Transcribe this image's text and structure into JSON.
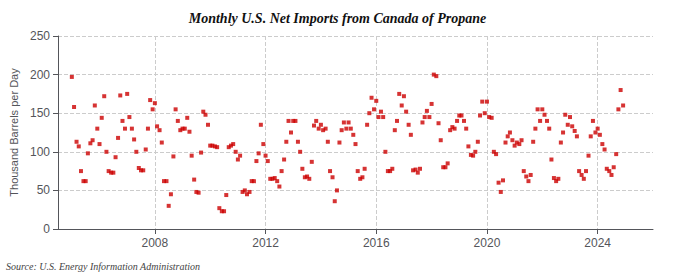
{
  "chart_data": {
    "type": "scatter",
    "title": "Monthly U.S. Net Imports from Canada of Propane",
    "ylabel": "Thousand Barrels per Day",
    "annotation": "Source: U.S. Energy Information Administration",
    "color": "#cc0000",
    "marker": "square",
    "grid": true,
    "xlim": [
      2004.5,
      2026.0
    ],
    "xticks": [
      2008,
      2012,
      2016,
      2020,
      2024
    ],
    "ylim": [
      0,
      250
    ],
    "yticks": [
      0,
      50,
      100,
      150,
      200,
      250
    ],
    "x": [
      2005.0,
      2005.08,
      2005.17,
      2005.25,
      2005.33,
      2005.42,
      2005.5,
      2005.58,
      2005.67,
      2005.75,
      2005.83,
      2005.92,
      2006.0,
      2006.08,
      2006.17,
      2006.25,
      2006.33,
      2006.42,
      2006.5,
      2006.58,
      2006.67,
      2006.75,
      2006.83,
      2006.92,
      2007.0,
      2007.08,
      2007.17,
      2007.25,
      2007.33,
      2007.42,
      2007.5,
      2007.58,
      2007.67,
      2007.75,
      2007.83,
      2007.92,
      2008.0,
      2008.08,
      2008.17,
      2008.25,
      2008.33,
      2008.42,
      2008.5,
      2008.58,
      2008.67,
      2008.75,
      2008.83,
      2008.92,
      2009.0,
      2009.08,
      2009.17,
      2009.25,
      2009.33,
      2009.42,
      2009.5,
      2009.58,
      2009.67,
      2009.75,
      2009.83,
      2009.92,
      2010.0,
      2010.08,
      2010.17,
      2010.25,
      2010.33,
      2010.42,
      2010.5,
      2010.58,
      2010.67,
      2010.75,
      2010.83,
      2010.92,
      2011.0,
      2011.08,
      2011.17,
      2011.25,
      2011.33,
      2011.42,
      2011.5,
      2011.58,
      2011.67,
      2011.75,
      2011.83,
      2011.92,
      2012.0,
      2012.08,
      2012.17,
      2012.25,
      2012.33,
      2012.42,
      2012.5,
      2012.58,
      2012.67,
      2012.75,
      2012.83,
      2012.92,
      2013.0,
      2013.08,
      2013.17,
      2013.25,
      2013.33,
      2013.42,
      2013.5,
      2013.58,
      2013.67,
      2013.75,
      2013.83,
      2013.92,
      2014.0,
      2014.08,
      2014.17,
      2014.25,
      2014.33,
      2014.42,
      2014.5,
      2014.58,
      2014.67,
      2014.75,
      2014.83,
      2014.92,
      2015.0,
      2015.08,
      2015.17,
      2015.25,
      2015.33,
      2015.42,
      2015.5,
      2015.58,
      2015.67,
      2015.75,
      2015.83,
      2015.92,
      2016.0,
      2016.08,
      2016.17,
      2016.25,
      2016.33,
      2016.42,
      2016.5,
      2016.58,
      2016.67,
      2016.75,
      2016.83,
      2016.92,
      2017.0,
      2017.08,
      2017.17,
      2017.25,
      2017.33,
      2017.42,
      2017.5,
      2017.58,
      2017.67,
      2017.75,
      2017.83,
      2017.92,
      2018.0,
      2018.08,
      2018.17,
      2018.25,
      2018.33,
      2018.42,
      2018.5,
      2018.58,
      2018.67,
      2018.75,
      2018.83,
      2018.92,
      2019.0,
      2019.08,
      2019.17,
      2019.25,
      2019.33,
      2019.42,
      2019.5,
      2019.58,
      2019.67,
      2019.75,
      2019.83,
      2019.92,
      2020.0,
      2020.08,
      2020.17,
      2020.25,
      2020.33,
      2020.42,
      2020.5,
      2020.58,
      2020.67,
      2020.75,
      2020.83,
      2020.92,
      2021.0,
      2021.08,
      2021.17,
      2021.25,
      2021.33,
      2021.42,
      2021.5,
      2021.58,
      2021.67,
      2021.75,
      2021.83,
      2021.92,
      2022.0,
      2022.08,
      2022.17,
      2022.25,
      2022.33,
      2022.42,
      2022.5,
      2022.58,
      2022.67,
      2022.75,
      2022.83,
      2022.92,
      2023.0,
      2023.08,
      2023.17,
      2023.25,
      2023.33,
      2023.42,
      2023.5,
      2023.58,
      2023.67,
      2023.75,
      2023.83,
      2023.92,
      2024.0,
      2024.08,
      2024.17,
      2024.25,
      2024.33,
      2024.42,
      2024.5,
      2024.58,
      2024.67,
      2024.75,
      2024.83,
      2024.92
    ],
    "values": [
      197,
      158,
      113,
      107,
      75,
      62,
      62,
      98,
      111,
      115,
      160,
      130,
      110,
      144,
      172,
      100,
      75,
      73,
      73,
      93,
      118,
      173,
      140,
      130,
      175,
      145,
      130,
      116,
      100,
      79,
      76,
      76,
      103,
      130,
      167,
      155,
      163,
      133,
      128,
      112,
      62,
      62,
      30,
      45,
      94,
      155,
      140,
      128,
      130,
      130,
      144,
      126,
      95,
      64,
      48,
      47,
      99,
      152,
      148,
      135,
      108,
      108,
      107,
      106,
      27,
      23,
      23,
      44,
      106,
      108,
      110,
      100,
      90,
      95,
      48,
      50,
      45,
      48,
      62,
      62,
      88,
      98,
      135,
      110,
      95,
      88,
      65,
      65,
      66,
      62,
      55,
      75,
      90,
      113,
      140,
      125,
      140,
      140,
      113,
      100,
      78,
      67,
      68,
      65,
      87,
      134,
      140,
      130,
      135,
      128,
      130,
      113,
      75,
      67,
      36,
      50,
      112,
      128,
      138,
      130,
      138,
      130,
      122,
      110,
      75,
      65,
      67,
      78,
      135,
      150,
      170,
      155,
      166,
      145,
      152,
      145,
      100,
      75,
      75,
      78,
      128,
      140,
      175,
      160,
      172,
      152,
      135,
      122,
      76,
      77,
      73,
      78,
      138,
      145,
      153,
      145,
      162,
      200,
      198,
      137,
      115,
      80,
      80,
      85,
      128,
      132,
      130,
      140,
      147,
      147,
      140,
      130,
      107,
      96,
      95,
      100,
      113,
      147,
      165,
      150,
      165,
      145,
      144,
      100,
      97,
      60,
      48,
      63,
      112,
      120,
      125,
      115,
      108,
      112,
      110,
      115,
      75,
      68,
      62,
      70,
      113,
      130,
      155,
      140,
      155,
      148,
      140,
      130,
      90,
      66,
      62,
      65,
      112,
      125,
      148,
      135,
      145,
      133,
      127,
      120,
      75,
      70,
      65,
      75,
      95,
      120,
      140,
      125,
      130,
      122,
      110,
      103,
      78,
      75,
      70,
      80,
      97,
      155,
      180,
      160
    ]
  }
}
